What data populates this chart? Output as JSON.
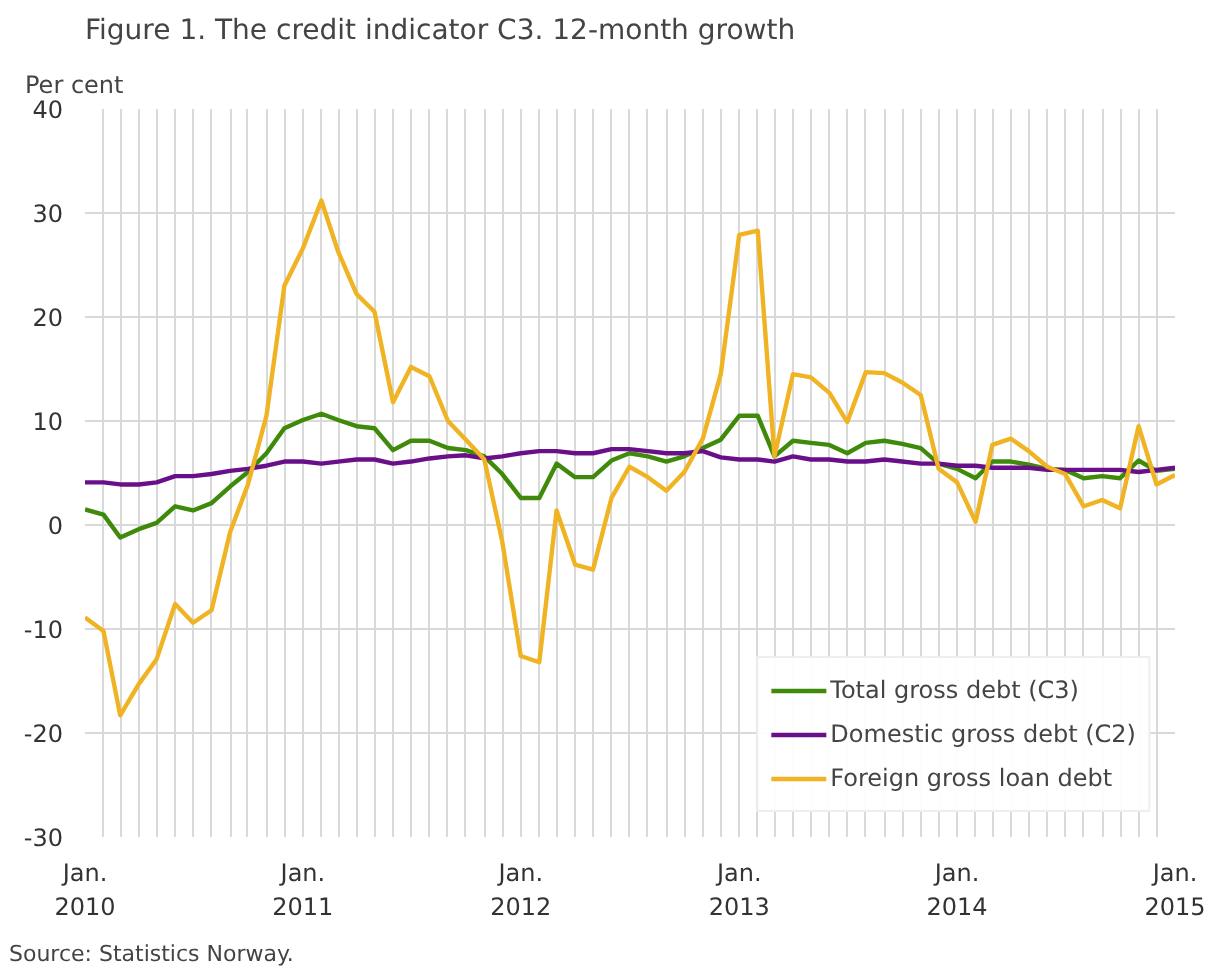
{
  "chart_data": {
    "type": "line",
    "title": "Figure 1. The credit indicator C3. 12-month growth",
    "ylabel": "Per cent",
    "annotations": [
      "Source: Statistics Norway."
    ],
    "x": [
      "2010-01",
      "2010-02",
      "2010-03",
      "2010-04",
      "2010-05",
      "2010-06",
      "2010-07",
      "2010-08",
      "2010-09",
      "2010-10",
      "2010-11",
      "2010-12",
      "2011-01",
      "2011-02",
      "2011-03",
      "2011-04",
      "2011-05",
      "2011-06",
      "2011-07",
      "2011-08",
      "2011-09",
      "2011-10",
      "2011-11",
      "2011-12",
      "2012-01",
      "2012-02",
      "2012-03",
      "2012-04",
      "2012-05",
      "2012-06",
      "2012-07",
      "2012-08",
      "2012-09",
      "2012-10",
      "2012-11",
      "2012-12",
      "2013-01",
      "2013-02",
      "2013-03",
      "2013-04",
      "2013-05",
      "2013-06",
      "2013-07",
      "2013-08",
      "2013-09",
      "2013-10",
      "2013-11",
      "2013-12",
      "2014-01",
      "2014-02",
      "2014-03",
      "2014-04",
      "2014-05",
      "2014-06",
      "2014-07",
      "2014-08",
      "2014-09",
      "2014-10",
      "2014-11",
      "2014-12",
      "2015-01"
    ],
    "series": [
      {
        "name": "Total gross debt (C3)",
        "color": "#3f8a0b",
        "values": [
          1.5,
          1.0,
          -1.2,
          -0.4,
          0.2,
          1.8,
          1.4,
          2.1,
          3.7,
          5.1,
          6.9,
          9.3,
          10.1,
          10.7,
          10.1,
          9.5,
          9.3,
          7.2,
          8.1,
          8.1,
          7.4,
          7.2,
          6.6,
          4.9,
          2.6,
          2.6,
          5.9,
          4.6,
          4.6,
          6.2,
          6.9,
          6.6,
          6.1,
          6.6,
          7.4,
          8.2,
          10.5,
          10.5,
          6.6,
          8.1,
          7.9,
          7.7,
          6.9,
          7.9,
          8.1,
          7.8,
          7.4,
          5.9,
          5.4,
          4.5,
          6.1,
          6.1,
          5.8,
          5.4,
          5.3,
          4.5,
          4.7,
          4.5,
          6.2,
          5.2,
          5.4
        ]
      },
      {
        "name": "Domestic gross debt (C2)",
        "color": "#6a0f8a",
        "values": [
          4.1,
          4.1,
          3.9,
          3.9,
          4.1,
          4.7,
          4.7,
          4.9,
          5.2,
          5.4,
          5.7,
          6.1,
          6.1,
          5.9,
          6.1,
          6.3,
          6.3,
          5.9,
          6.1,
          6.4,
          6.6,
          6.7,
          6.4,
          6.6,
          6.9,
          7.1,
          7.1,
          6.9,
          6.9,
          7.3,
          7.3,
          7.1,
          6.9,
          6.9,
          7.1,
          6.5,
          6.3,
          6.3,
          6.1,
          6.6,
          6.3,
          6.3,
          6.1,
          6.1,
          6.3,
          6.1,
          5.9,
          5.9,
          5.7,
          5.7,
          5.5,
          5.5,
          5.5,
          5.3,
          5.3,
          5.3,
          5.3,
          5.3,
          5.1,
          5.3,
          5.5
        ]
      },
      {
        "name": "Foreign gross loan debt",
        "color": "#f0b323",
        "values": [
          -8.9,
          -10.2,
          -18.3,
          -15.3,
          -12.9,
          -7.6,
          -9.4,
          -8.2,
          -0.7,
          3.9,
          10.5,
          23.0,
          26.6,
          31.2,
          26.3,
          22.2,
          20.5,
          11.8,
          15.2,
          14.3,
          10.0,
          8.2,
          6.3,
          -1.6,
          -12.6,
          -13.2,
          1.4,
          -3.8,
          -4.3,
          2.6,
          5.6,
          4.6,
          3.3,
          5.1,
          8.3,
          14.5,
          27.9,
          28.3,
          6.6,
          14.5,
          14.2,
          12.7,
          9.9,
          14.7,
          14.6,
          13.7,
          12.5,
          5.4,
          4.1,
          0.3,
          7.7,
          8.3,
          7.1,
          5.6,
          4.9,
          1.8,
          2.4,
          1.6,
          9.5,
          3.9,
          4.8
        ]
      }
    ],
    "xlim": [
      "2010-01",
      "2015-01"
    ],
    "xticks": [
      {
        "value": "2010-01",
        "label": "Jan.\n2010"
      },
      {
        "value": "2010-02",
        "label": null
      },
      {
        "value": "2010-03",
        "label": null
      },
      {
        "value": "2010-04",
        "label": null
      },
      {
        "value": "2010-05",
        "label": null
      },
      {
        "value": "2010-06",
        "label": null
      },
      {
        "value": "2010-07",
        "label": null
      },
      {
        "value": "2010-08",
        "label": null
      },
      {
        "value": "2010-09",
        "label": null
      },
      {
        "value": "2010-10",
        "label": null
      },
      {
        "value": "2010-11",
        "label": null
      },
      {
        "value": "2010-12",
        "label": null
      },
      {
        "value": "2011-01",
        "label": "Jan.\n2011"
      },
      {
        "value": "2011-02",
        "label": null
      },
      {
        "value": "2011-03",
        "label": null
      },
      {
        "value": "2011-04",
        "label": null
      },
      {
        "value": "2011-05",
        "label": null
      },
      {
        "value": "2011-06",
        "label": null
      },
      {
        "value": "2011-07",
        "label": null
      },
      {
        "value": "2011-08",
        "label": null
      },
      {
        "value": "2011-09",
        "label": null
      },
      {
        "value": "2011-10",
        "label": null
      },
      {
        "value": "2011-11",
        "label": null
      },
      {
        "value": "2011-12",
        "label": null
      },
      {
        "value": "2012-01",
        "label": "Jan.\n2012"
      },
      {
        "value": "2012-02",
        "label": null
      },
      {
        "value": "2012-03",
        "label": null
      },
      {
        "value": "2012-04",
        "label": null
      },
      {
        "value": "2012-05",
        "label": null
      },
      {
        "value": "2012-06",
        "label": null
      },
      {
        "value": "2012-07",
        "label": null
      },
      {
        "value": "2012-08",
        "label": null
      },
      {
        "value": "2012-09",
        "label": null
      },
      {
        "value": "2012-10",
        "label": null
      },
      {
        "value": "2012-11",
        "label": null
      },
      {
        "value": "2012-12",
        "label": null
      },
      {
        "value": "2013-01",
        "label": "Jan.\n2013"
      },
      {
        "value": "2013-02",
        "label": null
      },
      {
        "value": "2013-03",
        "label": null
      },
      {
        "value": "2013-04",
        "label": null
      },
      {
        "value": "2013-05",
        "label": null
      },
      {
        "value": "2013-06",
        "label": null
      },
      {
        "value": "2013-07",
        "label": null
      },
      {
        "value": "2013-08",
        "label": null
      },
      {
        "value": "2013-09",
        "label": null
      },
      {
        "value": "2013-10",
        "label": null
      },
      {
        "value": "2013-11",
        "label": null
      },
      {
        "value": "2013-12",
        "label": null
      },
      {
        "value": "2014-01",
        "label": "Jan.\n2014"
      },
      {
        "value": "2014-02",
        "label": null
      },
      {
        "value": "2014-03",
        "label": null
      },
      {
        "value": "2014-04",
        "label": null
      },
      {
        "value": "2014-05",
        "label": null
      },
      {
        "value": "2014-06",
        "label": null
      },
      {
        "value": "2014-07",
        "label": null
      },
      {
        "value": "2014-08",
        "label": null
      },
      {
        "value": "2014-09",
        "label": null
      },
      {
        "value": "2014-10",
        "label": null
      },
      {
        "value": "2014-11",
        "label": null
      },
      {
        "value": "2014-12",
        "label": null
      },
      {
        "value": "2015-01",
        "label": "Jan.\n2015"
      }
    ],
    "ylim": [
      -30,
      40
    ],
    "yticks": [
      -30,
      -20,
      -10,
      0,
      10,
      20,
      30,
      40
    ],
    "grid": true,
    "legend": "bottom right",
    "marker": "none",
    "line_style": "solid"
  }
}
